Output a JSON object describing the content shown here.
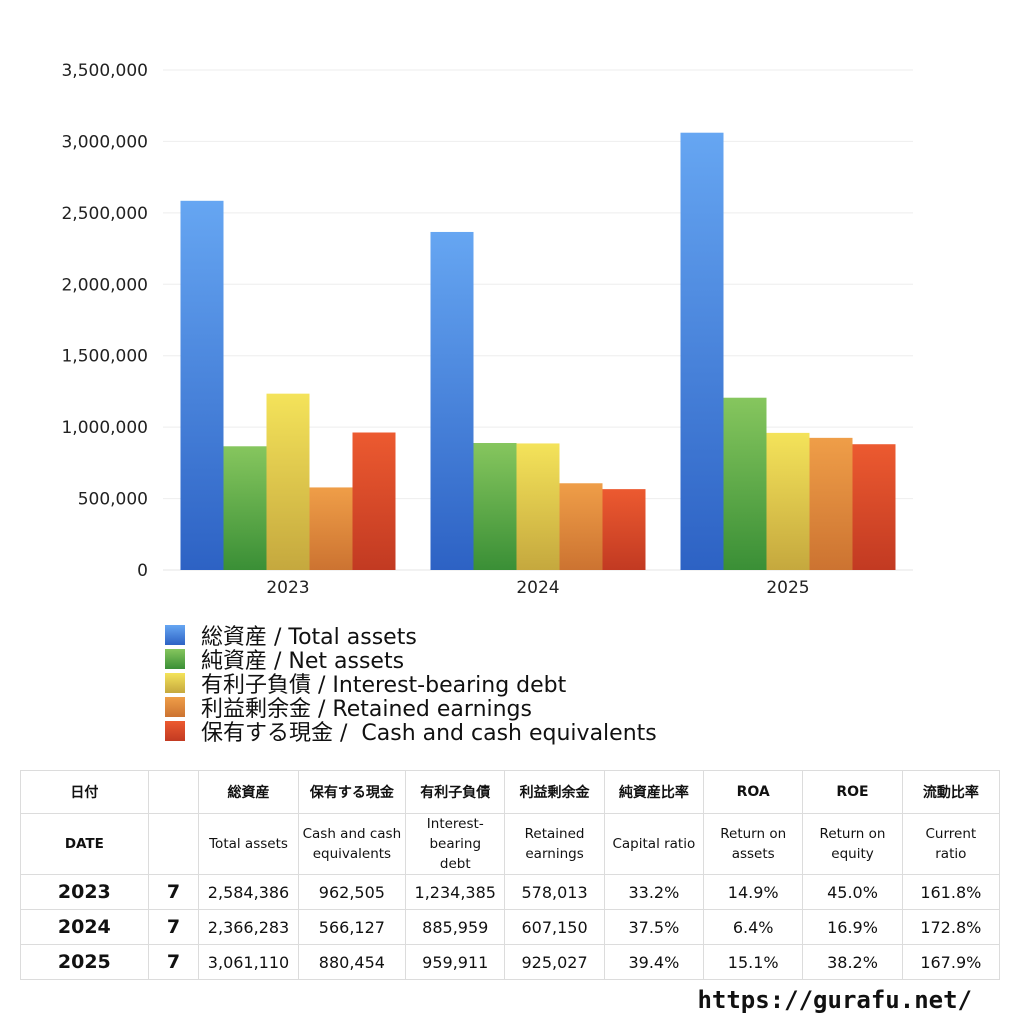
{
  "chart_data": {
    "type": "bar",
    "categories": [
      "2023",
      "2024",
      "2025"
    ],
    "series": [
      {
        "name": "総資産 / Total assets",
        "values": [
          2584386,
          2366283,
          3061110
        ],
        "color_top": "#66a6f2",
        "color_bottom": "#2d62c4"
      },
      {
        "name": "純資産 / Net assets",
        "values": [
          866000,
          889000,
          1206000
        ],
        "color_top": "#86c65e",
        "color_bottom": "#3a8f36"
      },
      {
        "name": "有利子負債 / Interest-bearing debt",
        "values": [
          1234385,
          885959,
          959911
        ],
        "color_top": "#f4e35a",
        "color_bottom": "#c5a83e"
      },
      {
        "name": "利益剰余金 / Retained earnings",
        "values": [
          578013,
          607150,
          925027
        ],
        "color_top": "#ef9e48",
        "color_bottom": "#cc7331"
      },
      {
        "name": "保有する現金 /  Cash and cash equivalents",
        "values": [
          962505,
          566127,
          880454
        ],
        "color_top": "#ec5a30",
        "color_bottom": "#c23a22"
      }
    ],
    "ylim": [
      0,
      3500000
    ],
    "yticks": [
      0,
      500000,
      1000000,
      1500000,
      2000000,
      2500000,
      3000000,
      3500000
    ],
    "ytick_labels": [
      "0",
      "500,000",
      "1,000,000",
      "1,500,000",
      "2,000,000",
      "2,500,000",
      "3,000,000",
      "3,500,000"
    ],
    "grid": true,
    "legend_position": "bottom"
  },
  "table": {
    "header_jp": [
      "日付",
      "",
      "総資産",
      "保有する現金",
      "有利子負債",
      "利益剰余金",
      "純資産比率",
      "ROA",
      "ROE",
      "流動比率"
    ],
    "header_en": [
      "DATE",
      "",
      "Total assets",
      "Cash and cash\nequivalents",
      "Interest-\nbearing\ndebt",
      "Retained\nearnings",
      "Capital ratio",
      "Return on\nassets",
      "Return on\nequity",
      "Current\nratio"
    ],
    "rows": [
      [
        "2023",
        "7",
        "2,584,386",
        "962,505",
        "1,234,385",
        "578,013",
        "33.2%",
        "14.9%",
        "45.0%",
        "161.8%"
      ],
      [
        "2024",
        "7",
        "2,366,283",
        "566,127",
        "885,959",
        "607,150",
        "37.5%",
        "6.4%",
        "16.9%",
        "172.8%"
      ],
      [
        "2025",
        "7",
        "3,061,110",
        "880,454",
        "959,911",
        "925,027",
        "39.4%",
        "15.1%",
        "38.2%",
        "167.9%"
      ]
    ]
  },
  "footer": {
    "site_url": "https://gurafu.net/"
  }
}
